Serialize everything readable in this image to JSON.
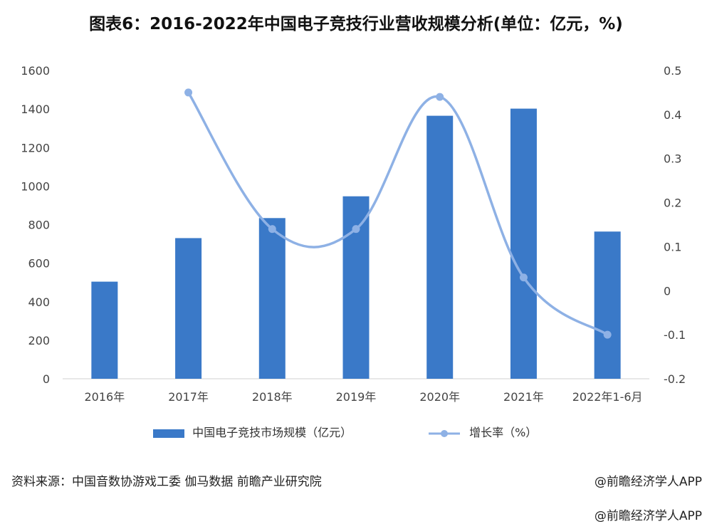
{
  "title": "图表6：2016-2022年中国电子竞技行业营收规模分析(单位：亿元，%)",
  "source": "资料来源：中国音数协游戏工委 伽马数据 前瞻产业研究院",
  "watermark_top": "@前瞻经济学人APP",
  "watermark_bottom": "@前瞻经济学人APP",
  "chart_data": {
    "type": "bar",
    "categories": [
      "2016年",
      "2017年",
      "2018年",
      "2019年",
      "2020年",
      "2021年",
      "2022年1-6月"
    ],
    "series": [
      {
        "name": "中国电子竞技市场规模（亿元）",
        "type": "bar",
        "axis": "left",
        "values": [
          504,
          730,
          834,
          947,
          1365,
          1402,
          764
        ],
        "color": "#3a79c8"
      },
      {
        "name": "增长率（%）",
        "type": "line",
        "axis": "right",
        "values": [
          null,
          0.45,
          0.14,
          0.14,
          0.44,
          0.03,
          -0.1
        ],
        "color": "#8eb1e5"
      }
    ],
    "y_left": {
      "min": 0,
      "max": 1600,
      "ticks": [
        "0",
        "200",
        "400",
        "600",
        "800",
        "1000",
        "1200",
        "1400",
        "1600"
      ]
    },
    "y_right": {
      "min": -0.2,
      "max": 0.5,
      "ticks": [
        "-0.2",
        "-0.1",
        "0",
        "0.1",
        "0.2",
        "0.3",
        "0.4",
        "0.5"
      ]
    },
    "grid": false,
    "legend_position": "bottom"
  }
}
